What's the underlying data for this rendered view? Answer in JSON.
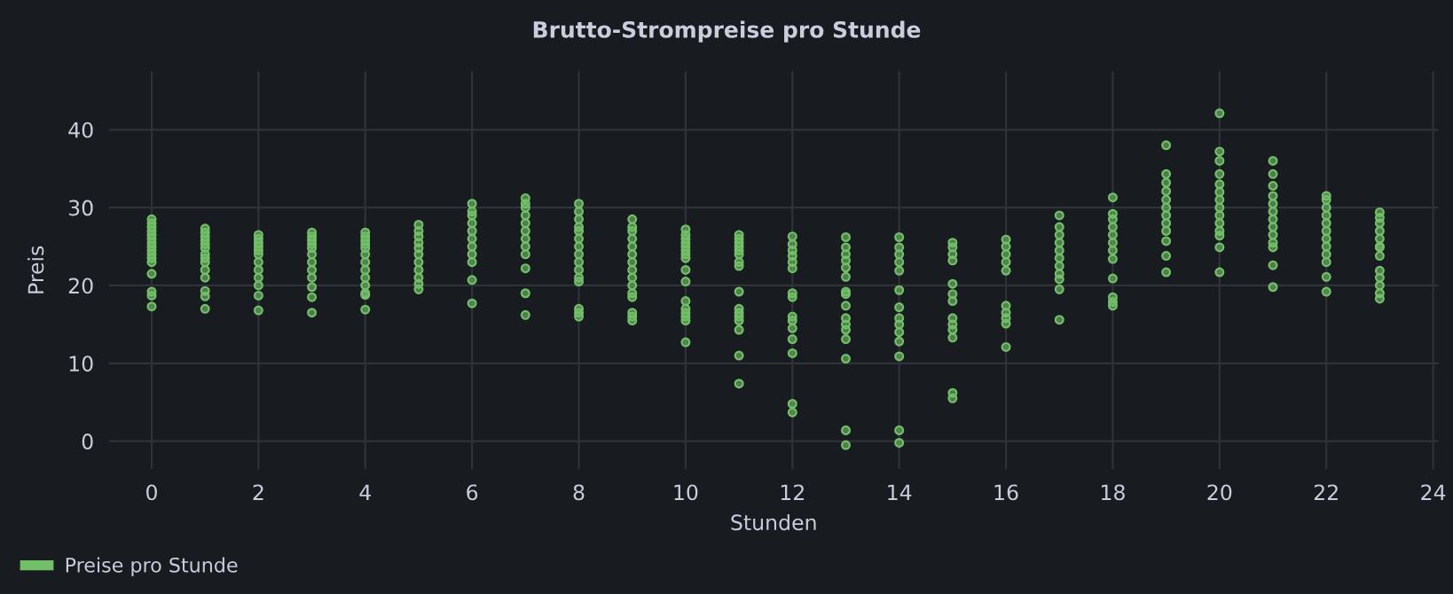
{
  "chart_data": {
    "type": "scatter",
    "title": "Brutto-Strompreise pro Stunde",
    "xlabel": "Stunden",
    "ylabel": "Preis",
    "xlim": [
      -0.8,
      24.1
    ],
    "xticks": [
      0,
      2,
      4,
      6,
      8,
      10,
      12,
      14,
      16,
      18,
      20,
      22,
      24
    ],
    "ylim": [
      -3.6,
      47.5
    ],
    "yticks": [
      0,
      10,
      20,
      30,
      40
    ],
    "grid": true,
    "legend": "bottom left",
    "marker": "circle",
    "series": [
      {
        "name": "Preise pro Stunde",
        "color": "#73bf69",
        "x": [
          0,
          0,
          0,
          0,
          0,
          0,
          0,
          0,
          0,
          0,
          0,
          0,
          0,
          0,
          0,
          0,
          1,
          1,
          1,
          1,
          1,
          1,
          1,
          1,
          1,
          1,
          1,
          1,
          1,
          1,
          2,
          2,
          2,
          2,
          2,
          2,
          2,
          2,
          2,
          2,
          2,
          2,
          3,
          3,
          3,
          3,
          3,
          3,
          3,
          3,
          3,
          3,
          3,
          3,
          4,
          4,
          4,
          4,
          4,
          4,
          4,
          4,
          4,
          4,
          4,
          4,
          4,
          5,
          5,
          5,
          5,
          5,
          5,
          5,
          5,
          5,
          5,
          5,
          6,
          6,
          6,
          6,
          6,
          6,
          6,
          6,
          6,
          6,
          6,
          7,
          7,
          7,
          7,
          7,
          7,
          7,
          7,
          7,
          7,
          7,
          7,
          8,
          8,
          8,
          8,
          8,
          8,
          8,
          8,
          8,
          8,
          8,
          8,
          8,
          8,
          8,
          9,
          9,
          9,
          9,
          9,
          9,
          9,
          9,
          9,
          9,
          9,
          9,
          9,
          9,
          9,
          10,
          10,
          10,
          10,
          10,
          10,
          10,
          10,
          10,
          10,
          10,
          10,
          10,
          10,
          10,
          10,
          11,
          11,
          11,
          11,
          11,
          11,
          11,
          11,
          11,
          11,
          11,
          11,
          11,
          11,
          11,
          11,
          12,
          12,
          12,
          12,
          12,
          12,
          12,
          12,
          12,
          12,
          12,
          12,
          12,
          12,
          12,
          13,
          13,
          13,
          13,
          13,
          13,
          13,
          13,
          13,
          13,
          13,
          13,
          13,
          13,
          13,
          13,
          14,
          14,
          14,
          14,
          14,
          14,
          14,
          14,
          14,
          14,
          14,
          14,
          14,
          14,
          15,
          15,
          15,
          15,
          15,
          15,
          15,
          15,
          15,
          15,
          15,
          15,
          15,
          16,
          16,
          16,
          16,
          16,
          16,
          16,
          16,
          16,
          16,
          17,
          17,
          17,
          17,
          17,
          17,
          17,
          17,
          17,
          17,
          17,
          18,
          18,
          18,
          18,
          18,
          18,
          18,
          18,
          18,
          18,
          18,
          18,
          19,
          19,
          19,
          19,
          19,
          19,
          19,
          19,
          19,
          19,
          19,
          19,
          20,
          20,
          20,
          20,
          20,
          20,
          20,
          20,
          20,
          20,
          20,
          20,
          20,
          20,
          21,
          21,
          21,
          21,
          21,
          21,
          21,
          21,
          21,
          21,
          21,
          21,
          21,
          22,
          22,
          22,
          22,
          22,
          22,
          22,
          22,
          22,
          22,
          22,
          22,
          23,
          23,
          23,
          23,
          23,
          23,
          23,
          23,
          23,
          23,
          23,
          23,
          23
        ],
        "values": [
          28.5,
          28,
          27.5,
          27,
          26.5,
          26,
          25.5,
          25,
          24.5,
          24,
          23.5,
          23,
          21.5,
          19.2,
          18.7,
          17.3,
          27.3,
          26.8,
          26.3,
          25.8,
          25.3,
          24.8,
          24,
          23.5,
          23,
          22,
          21,
          19.3,
          18.6,
          17,
          26.5,
          26,
          25.5,
          25,
          24.5,
          24,
          23,
          22,
          21,
          20,
          18.7,
          16.8,
          26.8,
          26.3,
          25.8,
          25.3,
          24.8,
          24,
          23,
          22,
          21,
          19.8,
          18.5,
          16.5,
          26.8,
          26.3,
          25.8,
          25.3,
          24.8,
          24,
          23,
          22,
          21,
          20,
          19,
          18.8,
          16.9,
          27.8,
          27,
          26.3,
          25.5,
          24.8,
          24,
          23,
          22,
          21,
          20.2,
          19.5,
          30.5,
          29.5,
          29,
          28,
          27,
          26,
          25,
          24,
          23,
          20.7,
          17.7,
          31.2,
          30.5,
          30,
          29,
          28,
          27,
          26,
          25,
          24,
          22.2,
          19,
          16.2,
          30.5,
          29.5,
          28.5,
          27.5,
          27,
          26,
          25,
          24,
          23,
          22,
          21,
          20.5,
          17,
          16.5,
          16,
          28.5,
          27.5,
          27,
          26,
          25,
          24,
          23,
          22,
          21,
          20,
          19,
          18.5,
          16.5,
          16,
          15.5,
          27.2,
          26.5,
          26,
          25.5,
          25,
          24.5,
          24,
          23.5,
          22,
          20.5,
          18,
          17,
          16.5,
          16,
          15.5,
          12.7,
          26.5,
          26,
          25.5,
          25,
          24.5,
          24,
          23,
          22.5,
          19.2,
          17,
          16.5,
          16,
          15.5,
          14.3,
          11,
          7.4,
          26.3,
          25.3,
          24.5,
          23.8,
          23,
          22.2,
          19,
          18.5,
          16,
          15.5,
          14.5,
          13.1,
          11.3,
          4.8,
          3.7,
          26.2,
          24.9,
          24,
          23.2,
          22.3,
          21.1,
          19.2,
          18.9,
          17.4,
          15.8,
          15,
          14.3,
          13.1,
          10.6,
          1.4,
          -0.5,
          26.2,
          24.9,
          24,
          23,
          21.9,
          19.4,
          17.2,
          15.8,
          15,
          14,
          12.8,
          10.9,
          1.4,
          -0.2,
          25.5,
          24.9,
          24,
          23.2,
          20.2,
          18.9,
          18,
          15.8,
          15,
          14.3,
          13.3,
          6.2,
          5.5,
          25.9,
          25,
          24,
          23,
          21.9,
          17.4,
          16.5,
          15.8,
          15.1,
          12.1,
          29,
          27.5,
          26.5,
          25.5,
          24.5,
          23.5,
          22.5,
          21.5,
          20.8,
          19.5,
          15.6,
          31.3,
          29.2,
          28.5,
          27.5,
          26.5,
          25.5,
          24.5,
          23.4,
          20.9,
          18.5,
          17.9,
          17.4,
          38,
          34.3,
          33.2,
          32.1,
          31,
          30,
          29,
          28,
          27,
          25.7,
          23.8,
          21.7,
          42.1,
          37.2,
          36,
          34.3,
          33,
          32,
          31,
          30,
          29,
          28,
          27,
          26.4,
          24.9,
          21.7,
          36,
          34.3,
          32.8,
          31.5,
          30.5,
          29.5,
          28.5,
          27.5,
          26.5,
          25.5,
          24.9,
          22.6,
          19.8,
          31.5,
          31,
          30,
          29,
          28,
          27,
          26,
          25,
          24,
          23,
          21.1,
          19.2,
          29.4,
          28.7,
          28,
          27,
          26,
          25,
          24.9,
          23.8,
          21.9,
          21,
          20,
          19,
          18.3
        ]
      }
    ]
  }
}
